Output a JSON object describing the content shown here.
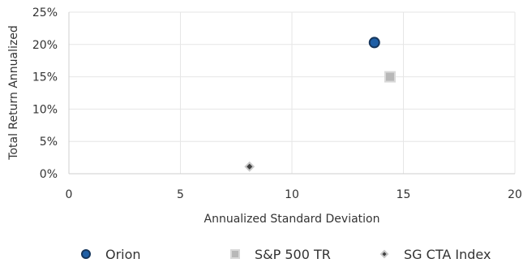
{
  "chart_data": {
    "type": "scatter",
    "title": "",
    "xlabel": "Annualized Standard Deviation",
    "ylabel": "Total Return Annualized",
    "xlim": [
      0,
      20
    ],
    "ylim": [
      0,
      25
    ],
    "x_ticks": [
      "0",
      "5",
      "10",
      "15",
      "20"
    ],
    "y_ticks": [
      "0%",
      "5%",
      "10%",
      "15%",
      "20%",
      "25%"
    ],
    "grid": true,
    "legend_position": "bottom",
    "series": [
      {
        "name": "Orion",
        "marker": "circle",
        "color": "#1f5fa6",
        "edge": "#16365c",
        "points": [
          {
            "x": 13.7,
            "y": 20.3
          }
        ]
      },
      {
        "name": "S&P 500 TR",
        "marker": "square",
        "color": "#b8b8b8",
        "edge": "#d9d9d9",
        "points": [
          {
            "x": 14.4,
            "y": 15.0
          }
        ]
      },
      {
        "name": "SG CTA Index",
        "marker": "diamond",
        "color": "#404040",
        "edge": "#c8c8c8",
        "points": [
          {
            "x": 8.1,
            "y": 1.1
          }
        ]
      }
    ]
  }
}
